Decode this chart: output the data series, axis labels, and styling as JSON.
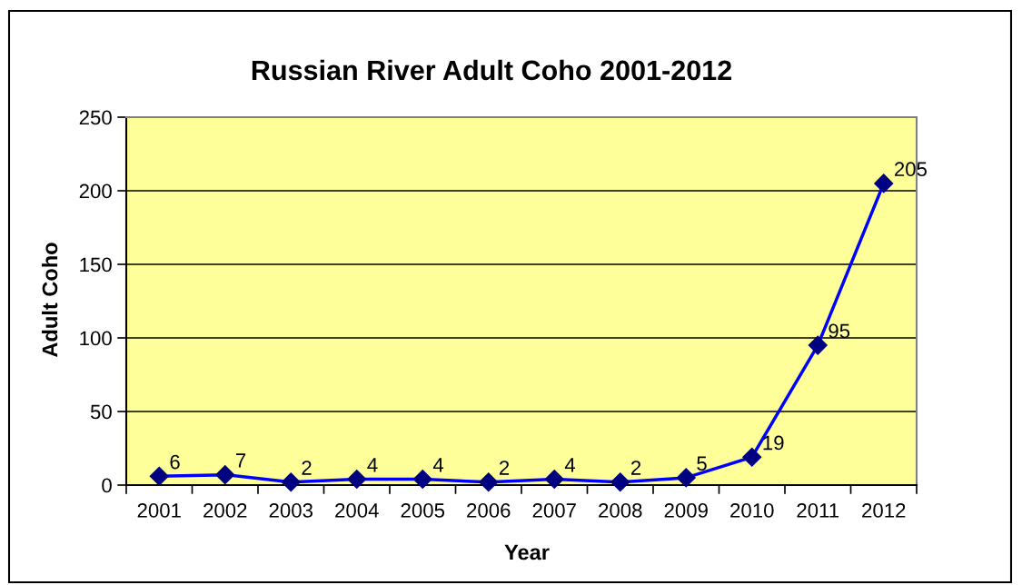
{
  "chart_data": {
    "type": "line",
    "title": "Russian River Adult Coho 2001-2012",
    "xlabel": "Year",
    "ylabel": "Adult Coho",
    "categories": [
      "2001",
      "2002",
      "2003",
      "2004",
      "2005",
      "2006",
      "2007",
      "2008",
      "2009",
      "2010",
      "2011",
      "2012"
    ],
    "values": [
      6,
      7,
      2,
      4,
      4,
      2,
      4,
      2,
      5,
      19,
      95,
      205
    ],
    "color": "#0000ff",
    "marker": "diamond",
    "line_style": "solid",
    "ylim": [
      0,
      250
    ],
    "yticks": [
      0,
      50,
      100,
      150,
      200,
      250
    ],
    "grid": "y",
    "data_labels": true
  }
}
